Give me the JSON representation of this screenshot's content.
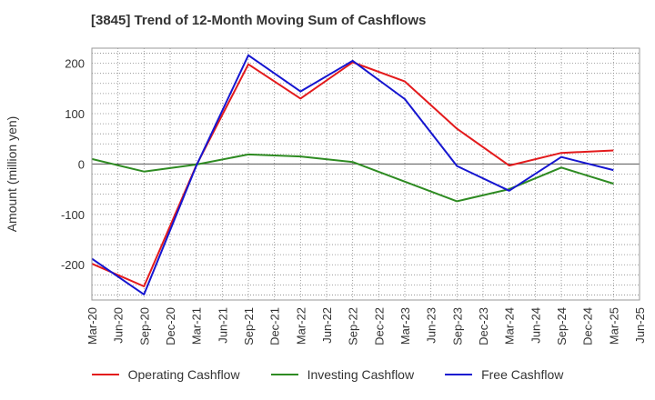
{
  "chart_data": {
    "type": "line",
    "title": "[3845]  Trend of 12-Month Moving Sum of Cashflows",
    "ylabel": "Amount (million yen)",
    "xlabel": "",
    "x": [
      "Mar-20",
      "Jun-20",
      "Sep-20",
      "Dec-20",
      "Mar-21",
      "Jun-21",
      "Sep-21",
      "Dec-21",
      "Mar-22",
      "Jun-22",
      "Sep-22",
      "Dec-22",
      "Mar-23",
      "Jun-23",
      "Sep-23",
      "Dec-23",
      "Mar-24",
      "Jun-24",
      "Sep-24",
      "Dec-24",
      "Mar-25",
      "Jun-25"
    ],
    "ylim": [
      -270,
      230
    ],
    "yticks": [
      -200,
      -100,
      0,
      100,
      200
    ],
    "grid": true,
    "legend_position": "bottom",
    "series": [
      {
        "name": "Operating Cashflow",
        "color": "#e31a1c",
        "values": [
          -198,
          null,
          -243,
          null,
          -3,
          null,
          198,
          null,
          130,
          null,
          202,
          null,
          164,
          null,
          70,
          null,
          -3,
          null,
          22,
          null,
          27,
          null
        ]
      },
      {
        "name": "Investing Cashflow",
        "color": "#2e8b22",
        "values": [
          10,
          null,
          -15,
          null,
          -1,
          null,
          19,
          null,
          15,
          null,
          4,
          null,
          -35,
          null,
          -74,
          null,
          -50,
          null,
          -7,
          null,
          -39,
          null
        ]
      },
      {
        "name": "Free Cashflow",
        "color": "#1515d0",
        "values": [
          -188,
          null,
          -259,
          null,
          -4,
          null,
          216,
          null,
          144,
          null,
          205,
          null,
          129,
          null,
          -4,
          null,
          -53,
          null,
          14,
          null,
          -12,
          null
        ]
      }
    ]
  }
}
